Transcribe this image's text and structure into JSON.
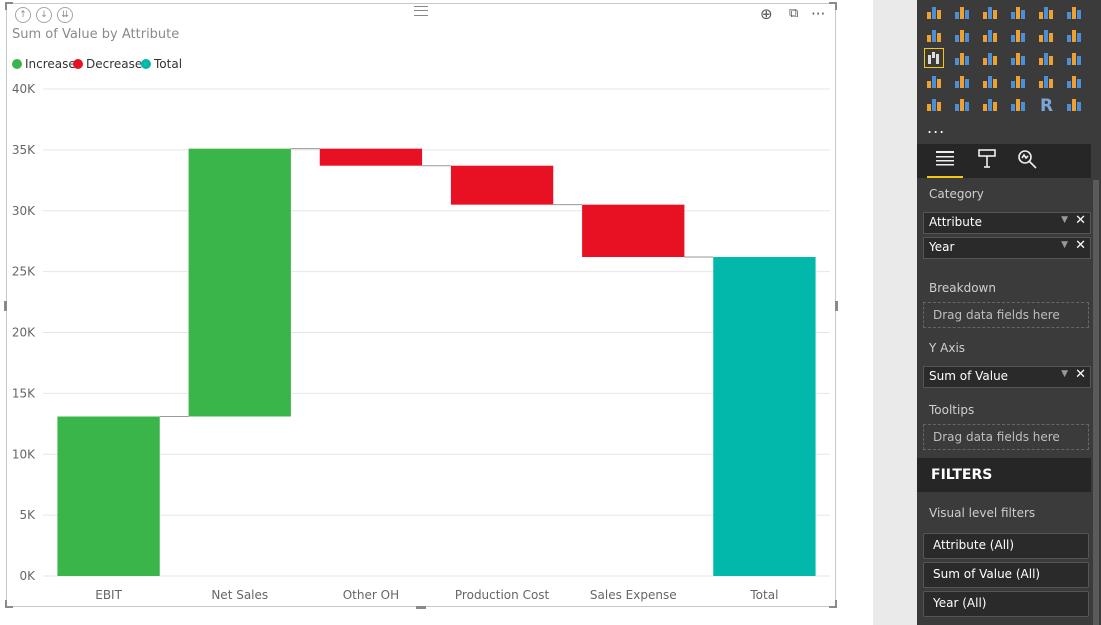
{
  "visual": {
    "title": "Sum of Value by Attribute",
    "header_icons": [
      "drill-up-icon",
      "drill-down-mode-icon",
      "expand-all-icon"
    ],
    "right_icons": [
      "download-icon",
      "focus-mode-icon",
      "more-options-icon"
    ],
    "more_glyph": "···"
  },
  "legend": [
    {
      "label": "Increase",
      "color": "#3ab54a"
    },
    {
      "label": "Decrease",
      "color": "#e81123"
    },
    {
      "label": "Total",
      "color": "#01b8aa"
    }
  ],
  "chart_data": {
    "type": "bar",
    "subtype": "waterfall",
    "title": "Sum of Value by Attribute",
    "categories": [
      "EBIT",
      "Net Sales",
      "Other OH",
      "Production Cost",
      "Sales Expense",
      "Total"
    ],
    "series": [
      {
        "category": "EBIT",
        "kind": "Increase",
        "start": 0,
        "end": 13100
      },
      {
        "category": "Net Sales",
        "kind": "Increase",
        "start": 13100,
        "end": 35100
      },
      {
        "category": "Other OH",
        "kind": "Decrease",
        "start": 35100,
        "end": 33700
      },
      {
        "category": "Production Cost",
        "kind": "Decrease",
        "start": 33700,
        "end": 30500
      },
      {
        "category": "Sales Expense",
        "kind": "Decrease",
        "start": 30500,
        "end": 26200
      },
      {
        "category": "Total",
        "kind": "Total",
        "start": 0,
        "end": 26200
      }
    ],
    "yticks": [
      "0K",
      "5K",
      "10K",
      "15K",
      "20K",
      "25K",
      "30K",
      "35K",
      "40K"
    ],
    "ylim": [
      0,
      40000
    ],
    "grid": true,
    "legend_position": "top-left",
    "colors": {
      "Increase": "#3ab54a",
      "Decrease": "#e81123",
      "Total": "#01b8aa"
    }
  },
  "pane": {
    "viz_icons": [
      "stacked-bar-icon",
      "stacked-column-icon",
      "clustered-bar-icon",
      "clustered-column-icon",
      "100-bar-icon",
      "100-column-icon",
      "line-chart-icon",
      "area-chart-icon",
      "stacked-area-icon",
      "line-column-icon",
      "line-clustered-column-icon",
      "ribbon-chart-icon",
      "waterfall-chart-icon",
      "scatter-chart-icon",
      "pie-chart-icon",
      "donut-chart-icon",
      "treemap-icon",
      "globe-map-icon",
      "filled-map-icon",
      "shape-map-icon",
      "funnel-icon",
      "gauge-icon",
      "card-icon",
      "multi-row-card-icon",
      "kpi-icon",
      "slicer-icon",
      "table-icon",
      "matrix-icon",
      "r-visual-icon",
      "arcgis-map-icon"
    ],
    "more_label": "...",
    "tabs": [
      "fields-tab-icon",
      "format-tab-icon",
      "analytics-tab-icon"
    ],
    "category_label": "Category",
    "category_fields": [
      "Attribute",
      "Year"
    ],
    "breakdown_label": "Breakdown",
    "drop_placeholder": "Drag data fields here",
    "yaxis_label": "Y Axis",
    "yaxis_fields": [
      "Sum of Value"
    ],
    "tooltips_label": "Tooltips",
    "filters_heading": "FILTERS",
    "visual_level_filters_label": "Visual level filters",
    "filter_cards": [
      "Attribute  (All)",
      "Sum of Value  (All)",
      "Year  (All)"
    ],
    "remove_glyph": "✕",
    "caret_glyph": "▼"
  }
}
